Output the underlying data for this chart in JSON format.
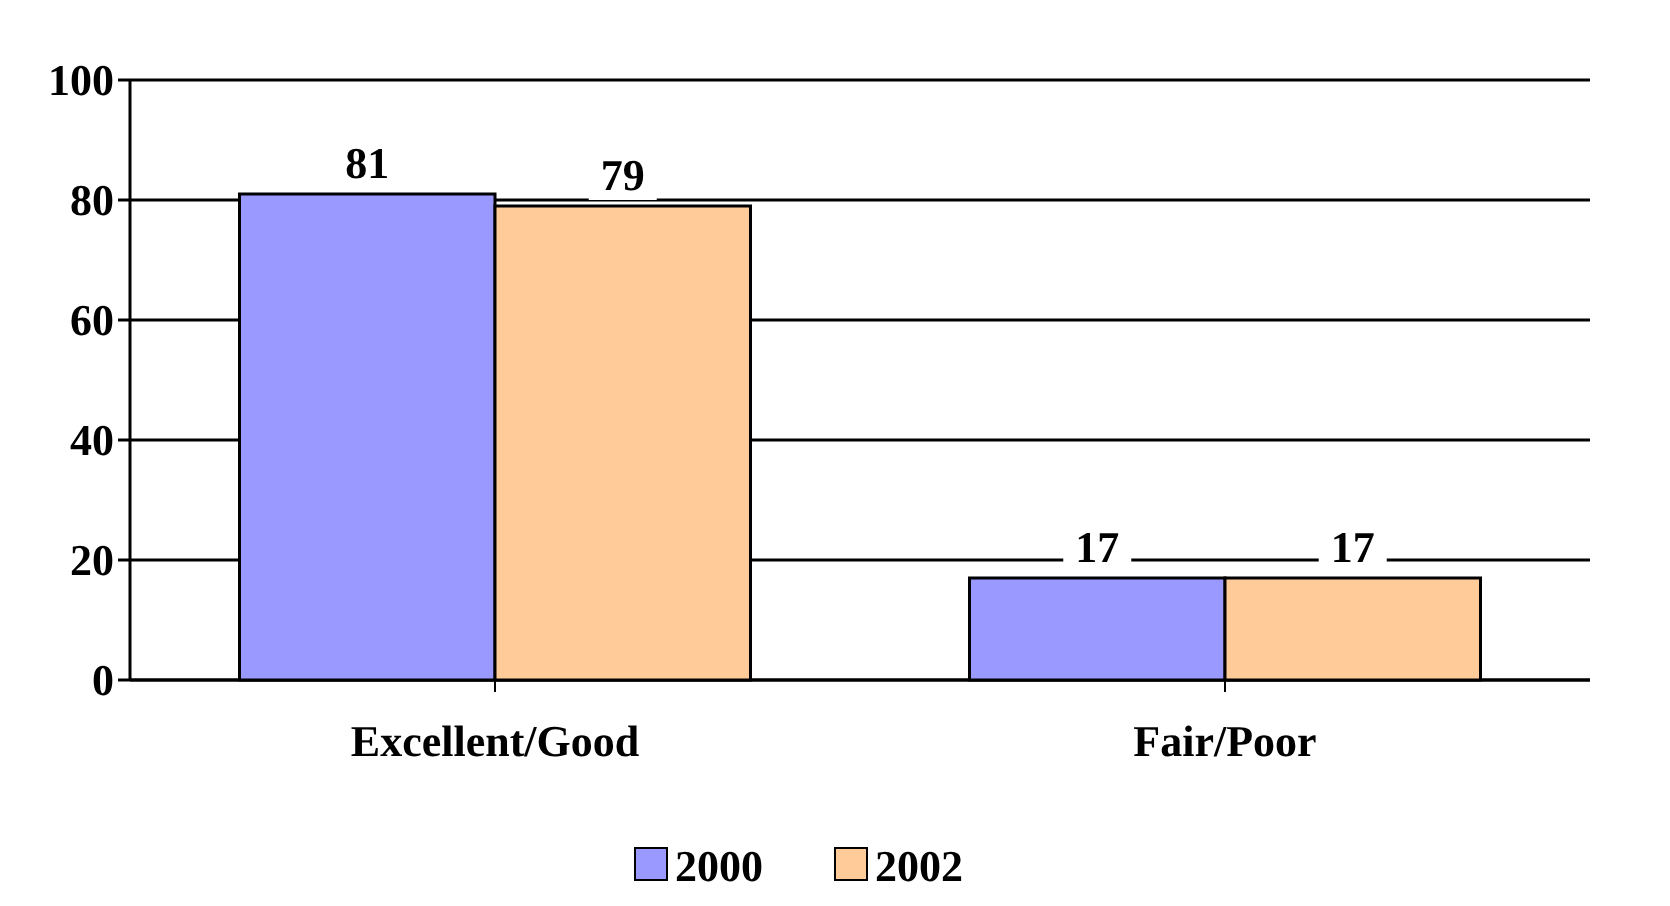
{
  "chart_data": {
    "type": "bar",
    "categories": [
      "Excellent/Good",
      "Fair/Poor"
    ],
    "series": [
      {
        "name": "2000",
        "color": "#9999ff",
        "values": [
          81,
          17
        ]
      },
      {
        "name": "2002",
        "color": "#ffcc99",
        "values": [
          79,
          17
        ]
      }
    ],
    "ylim": [
      0,
      100
    ],
    "yticks": [
      0,
      20,
      40,
      60,
      80,
      100
    ],
    "grid": "y",
    "data_labels": true,
    "legend": "bottom"
  }
}
